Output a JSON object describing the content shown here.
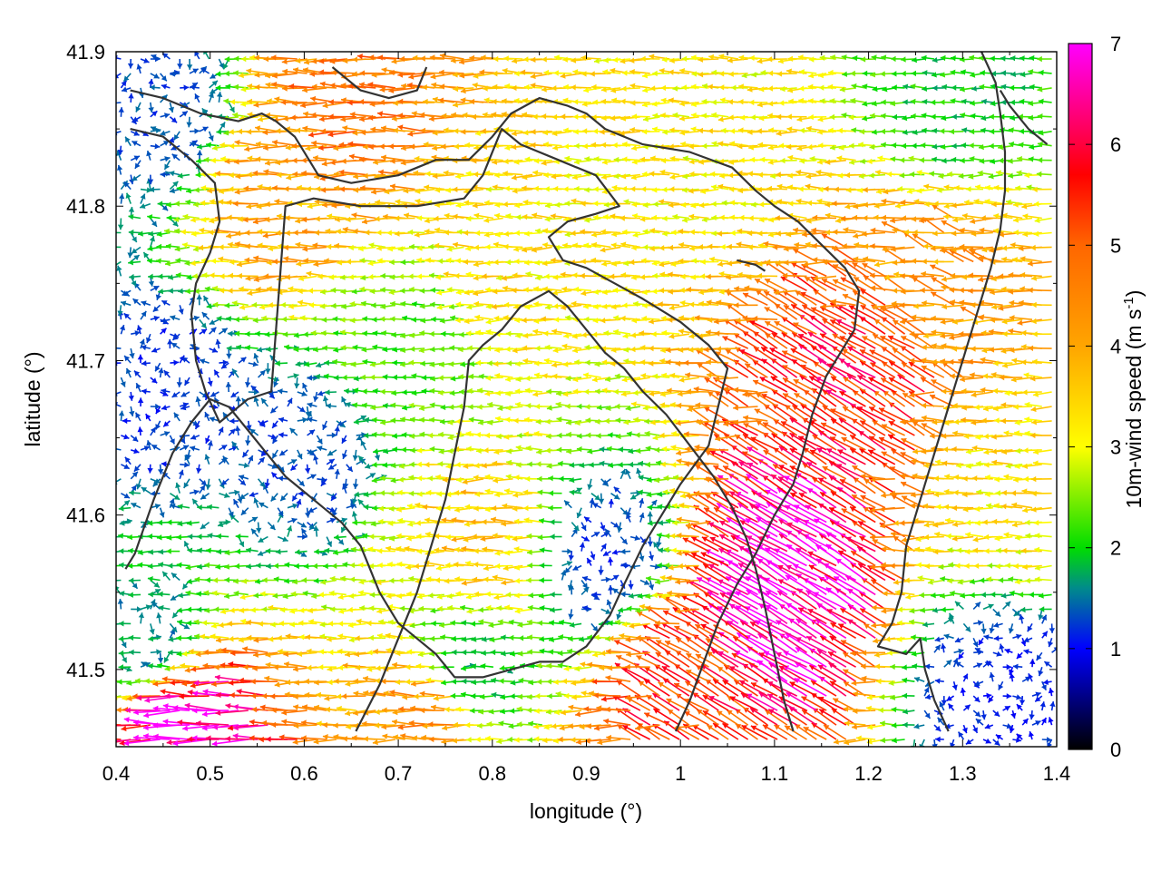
{
  "chart_data": {
    "type": "vector-field",
    "xlabel": "longitude (°)",
    "ylabel": "latitude (°)",
    "xlim": [
      0.4,
      1.4
    ],
    "ylim": [
      41.45,
      41.9
    ],
    "xticks": [
      "0.4",
      "0.5",
      "0.6",
      "0.7",
      "0.8",
      "0.9",
      "1",
      "1.1",
      "1.2",
      "1.3",
      "1.4"
    ],
    "yticks": [
      "41.5",
      "41.6",
      "41.7",
      "41.8",
      "41.9"
    ],
    "colorbar": {
      "label": "10m-wind speed (m s",
      "label_sup": "-1",
      "label_end": ")",
      "range": [
        0,
        7
      ],
      "ticks": [
        "0",
        "1",
        "2",
        "3",
        "4",
        "5",
        "6",
        "7"
      ],
      "stops": [
        {
          "v": 0,
          "c": "#000000"
        },
        {
          "v": 1,
          "c": "#0000ff"
        },
        {
          "v": 1.6,
          "c": "#008b8b"
        },
        {
          "v": 2,
          "c": "#00dd00"
        },
        {
          "v": 3,
          "c": "#ffff00"
        },
        {
          "v": 4,
          "c": "#ffa500"
        },
        {
          "v": 5,
          "c": "#ff6600"
        },
        {
          "v": 5.7,
          "c": "#ff0000"
        },
        {
          "v": 6.2,
          "c": "#ff0066"
        },
        {
          "v": 7,
          "c": "#ff00ff"
        }
      ]
    },
    "vector_grid": {
      "nx": 96,
      "ny": 48,
      "dominant_direction": "westward"
    },
    "wind_regions": [
      {
        "lon": 0.45,
        "lat": 41.86,
        "speed": 1.3
      },
      {
        "lon": 0.46,
        "lat": 41.68,
        "speed": 1.2
      },
      {
        "lon": 0.44,
        "lat": 41.52,
        "speed": 1.6
      },
      {
        "lon": 0.58,
        "lat": 41.8,
        "speed": 4.0
      },
      {
        "lon": 0.66,
        "lat": 41.86,
        "speed": 4.6
      },
      {
        "lon": 0.82,
        "lat": 41.76,
        "speed": 3.3
      },
      {
        "lon": 0.72,
        "lat": 41.71,
        "speed": 2.3
      },
      {
        "lon": 0.6,
        "lat": 41.64,
        "speed": 1.3
      },
      {
        "lon": 0.8,
        "lat": 41.58,
        "speed": 3.6
      },
      {
        "lon": 0.92,
        "lat": 41.57,
        "speed": 1.2
      },
      {
        "lon": 0.78,
        "lat": 41.5,
        "speed": 1.8
      },
      {
        "lon": 0.74,
        "lat": 41.47,
        "speed": 4.3
      },
      {
        "lon": 0.48,
        "lat": 41.46,
        "speed": 6.8
      },
      {
        "lon": 1.05,
        "lat": 41.84,
        "speed": 3.2
      },
      {
        "lon": 1.3,
        "lat": 41.87,
        "speed": 2.0
      },
      {
        "lon": 1.28,
        "lat": 41.75,
        "speed": 4.2
      },
      {
        "lon": 1.2,
        "lat": 41.69,
        "speed": 5.6
      },
      {
        "lon": 1.12,
        "lat": 41.55,
        "speed": 6.9
      },
      {
        "lon": 1.0,
        "lat": 41.49,
        "speed": 5.3
      },
      {
        "lon": 1.34,
        "lat": 41.49,
        "speed": 1.1
      },
      {
        "lon": 1.36,
        "lat": 41.62,
        "speed": 3.3
      }
    ],
    "coastlines": [
      [
        [
          0.415,
          41.875
        ],
        [
          0.45,
          41.87
        ],
        [
          0.49,
          41.86
        ],
        [
          0.53,
          41.855
        ],
        [
          0.555,
          41.86
        ],
        [
          0.57,
          41.855
        ],
        [
          0.59,
          41.845
        ],
        [
          0.6,
          41.835
        ],
        [
          0.615,
          41.82
        ],
        [
          0.65,
          41.815
        ],
        [
          0.7,
          41.82
        ],
        [
          0.74,
          41.83
        ],
        [
          0.775,
          41.83
        ],
        [
          0.8,
          41.845
        ],
        [
          0.82,
          41.86
        ],
        [
          0.85,
          41.87
        ],
        [
          0.88,
          41.865
        ],
        [
          0.9,
          41.86
        ],
        [
          0.92,
          41.85
        ],
        [
          0.96,
          41.84
        ],
        [
          1.01,
          41.835
        ],
        [
          1.055,
          41.825
        ],
        [
          1.08,
          41.81
        ],
        [
          1.1,
          41.8
        ],
        [
          1.125,
          41.79
        ],
        [
          1.15,
          41.775
        ],
        [
          1.175,
          41.76
        ],
        [
          1.19,
          41.745
        ],
        [
          1.185,
          41.72
        ],
        [
          1.17,
          41.705
        ],
        [
          1.155,
          41.69
        ],
        [
          1.14,
          41.665
        ],
        [
          1.13,
          41.64
        ],
        [
          1.12,
          41.62
        ],
        [
          1.1,
          41.6
        ],
        [
          1.08,
          41.575
        ],
        [
          1.06,
          41.555
        ],
        [
          1.04,
          41.53
        ],
        [
          1.025,
          41.505
        ],
        [
          1.01,
          41.48
        ],
        [
          0.995,
          41.46
        ]
      ],
      [
        [
          0.415,
          41.85
        ],
        [
          0.45,
          41.845
        ],
        [
          0.48,
          41.83
        ],
        [
          0.505,
          41.815
        ],
        [
          0.51,
          41.79
        ],
        [
          0.5,
          41.77
        ],
        [
          0.485,
          41.75
        ],
        [
          0.48,
          41.73
        ],
        [
          0.485,
          41.7
        ],
        [
          0.495,
          41.68
        ],
        [
          0.51,
          41.66
        ],
        [
          0.54,
          41.675
        ],
        [
          0.565,
          41.68
        ],
        [
          0.57,
          41.72
        ],
        [
          0.575,
          41.76
        ],
        [
          0.58,
          41.8
        ],
        [
          0.61,
          41.805
        ],
        [
          0.66,
          41.8
        ],
        [
          0.72,
          41.8
        ],
        [
          0.77,
          41.805
        ],
        [
          0.79,
          41.82
        ],
        [
          0.81,
          41.85
        ],
        [
          0.83,
          41.84
        ],
        [
          0.87,
          41.83
        ],
        [
          0.91,
          41.82
        ],
        [
          0.935,
          41.8
        ],
        [
          0.91,
          41.795
        ],
        [
          0.88,
          41.79
        ],
        [
          0.86,
          41.78
        ],
        [
          0.875,
          41.765
        ],
        [
          0.9,
          41.76
        ],
        [
          0.93,
          41.75
        ],
        [
          0.96,
          41.74
        ],
        [
          1.0,
          41.725
        ],
        [
          1.03,
          41.71
        ],
        [
          1.05,
          41.695
        ],
        [
          1.04,
          41.67
        ],
        [
          1.03,
          41.645
        ],
        [
          1.0,
          41.62
        ],
        [
          0.98,
          41.6
        ],
        [
          0.96,
          41.58
        ],
        [
          0.94,
          41.555
        ],
        [
          0.925,
          41.535
        ],
        [
          0.9,
          41.515
        ],
        [
          0.875,
          41.505
        ],
        [
          0.85,
          41.505
        ],
        [
          0.82,
          41.5
        ],
        [
          0.79,
          41.495
        ],
        [
          0.76,
          41.495
        ],
        [
          0.74,
          41.51
        ],
        [
          0.72,
          41.52
        ],
        [
          0.7,
          41.53
        ],
        [
          0.69,
          41.54
        ],
        [
          0.68,
          41.55
        ],
        [
          0.67,
          41.565
        ],
        [
          0.66,
          41.58
        ],
        [
          0.64,
          41.595
        ],
        [
          0.62,
          41.605
        ],
        [
          0.6,
          41.615
        ],
        [
          0.58,
          41.625
        ],
        [
          0.56,
          41.64
        ],
        [
          0.54,
          41.655
        ],
        [
          0.52,
          41.67
        ],
        [
          0.5,
          41.675
        ],
        [
          0.48,
          41.66
        ],
        [
          0.46,
          41.64
        ],
        [
          0.44,
          41.61
        ],
        [
          0.42,
          41.575
        ],
        [
          0.41,
          41.565
        ]
      ],
      [
        [
          0.655,
          41.46
        ],
        [
          0.68,
          41.49
        ],
        [
          0.7,
          41.52
        ],
        [
          0.72,
          41.55
        ],
        [
          0.735,
          41.58
        ],
        [
          0.75,
          41.61
        ],
        [
          0.76,
          41.64
        ],
        [
          0.77,
          41.67
        ],
        [
          0.775,
          41.7
        ],
        [
          0.79,
          41.71
        ],
        [
          0.81,
          41.72
        ],
        [
          0.83,
          41.735
        ],
        [
          0.86,
          41.745
        ],
        [
          0.88,
          41.735
        ],
        [
          0.9,
          41.72
        ],
        [
          0.92,
          41.705
        ],
        [
          0.94,
          41.695
        ],
        [
          0.96,
          41.68
        ],
        [
          0.985,
          41.665
        ],
        [
          1.01,
          41.645
        ],
        [
          1.035,
          41.625
        ],
        [
          1.055,
          41.605
        ],
        [
          1.07,
          41.585
        ],
        [
          1.08,
          41.565
        ],
        [
          1.09,
          41.54
        ],
        [
          1.1,
          41.51
        ],
        [
          1.11,
          41.48
        ],
        [
          1.12,
          41.46
        ]
      ],
      [
        [
          1.32,
          41.9
        ],
        [
          1.335,
          41.88
        ],
        [
          1.34,
          41.86
        ],
        [
          1.345,
          41.835
        ],
        [
          1.345,
          41.81
        ],
        [
          1.34,
          41.785
        ],
        [
          1.33,
          41.76
        ],
        [
          1.32,
          41.74
        ],
        [
          1.31,
          41.72
        ],
        [
          1.3,
          41.7
        ],
        [
          1.29,
          41.68
        ],
        [
          1.28,
          41.66
        ],
        [
          1.27,
          41.64
        ],
        [
          1.26,
          41.62
        ],
        [
          1.25,
          41.6
        ],
        [
          1.24,
          41.58
        ],
        [
          1.235,
          41.55
        ],
        [
          1.225,
          41.53
        ],
        [
          1.21,
          41.515
        ],
        [
          1.24,
          41.51
        ],
        [
          1.255,
          41.52
        ],
        [
          1.26,
          41.5
        ],
        [
          1.27,
          41.48
        ],
        [
          1.285,
          41.46
        ]
      ],
      [
        [
          1.39,
          41.84
        ],
        [
          1.37,
          41.85
        ],
        [
          1.35,
          41.865
        ],
        [
          1.34,
          41.875
        ]
      ],
      [
        [
          0.63,
          41.89
        ],
        [
          0.66,
          41.875
        ],
        [
          0.69,
          41.87
        ],
        [
          0.72,
          41.875
        ],
        [
          0.73,
          41.89
        ]
      ],
      [
        [
          1.06,
          41.765
        ],
        [
          1.08,
          41.762
        ],
        [
          1.09,
          41.758
        ]
      ]
    ]
  }
}
